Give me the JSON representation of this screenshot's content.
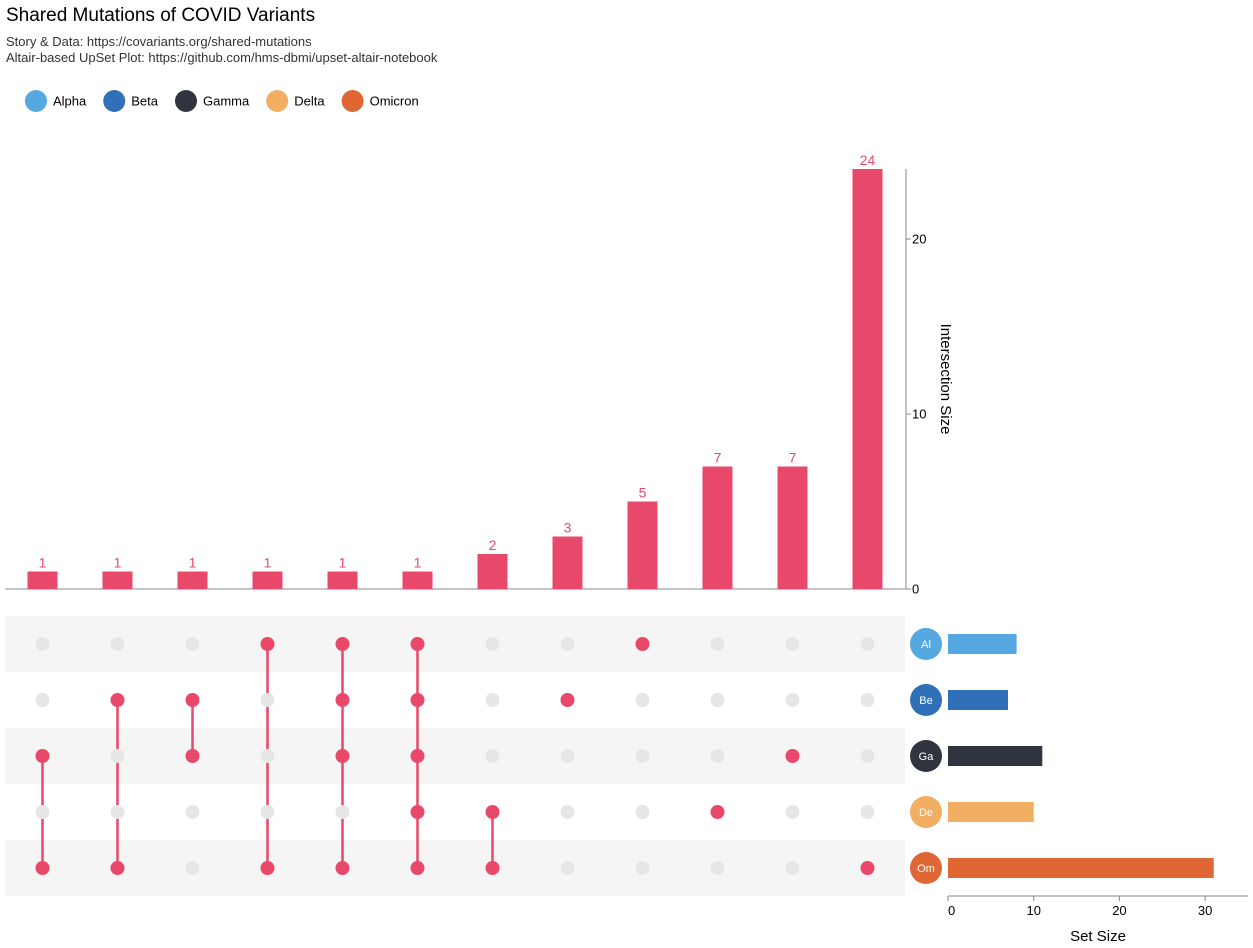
{
  "chart_data": {
    "type": "upset",
    "title": "Shared Mutations of COVID Variants",
    "subtitle": [
      "Story & Data: https://covariants.org/shared-mutations",
      "Altair-based UpSet Plot: https://github.com/hms-dbmi/upset-altair-notebook"
    ],
    "bar_color": "#e8496a",
    "inactive_color": "#e6e6e6",
    "intersection_values": [
      1,
      1,
      1,
      1,
      1,
      1,
      2,
      3,
      5,
      7,
      7,
      24
    ],
    "ylim": [
      0,
      24
    ],
    "yticks": [
      0,
      10,
      20
    ],
    "y_label": "Intersection Size",
    "sets": [
      {
        "name": "Alpha",
        "abbrev": "Al",
        "color": "#56a8e0",
        "size": 8
      },
      {
        "name": "Beta",
        "abbrev": "Be",
        "color": "#3070b8",
        "size": 7
      },
      {
        "name": "Gamma",
        "abbrev": "Ga",
        "color": "#30343f",
        "size": 11
      },
      {
        "name": "Delta",
        "abbrev": "De",
        "color": "#f2ae63",
        "size": 10
      },
      {
        "name": "Omicron",
        "abbrev": "Om",
        "color": "#e06633",
        "size": 31
      }
    ],
    "membership": [
      [
        0,
        0,
        0,
        1,
        1,
        1,
        0,
        0,
        1,
        0,
        0,
        0
      ],
      [
        0,
        1,
        1,
        0,
        1,
        1,
        0,
        1,
        0,
        0,
        0,
        0
      ],
      [
        1,
        0,
        1,
        0,
        1,
        1,
        0,
        0,
        0,
        0,
        1,
        0
      ],
      [
        0,
        0,
        0,
        0,
        0,
        1,
        1,
        0,
        0,
        1,
        0,
        0
      ],
      [
        1,
        1,
        0,
        1,
        1,
        1,
        1,
        0,
        0,
        0,
        0,
        1
      ]
    ],
    "xlim": [
      0,
      35
    ],
    "xticks": [
      0,
      10,
      20,
      30
    ],
    "x_label": "Set Size"
  }
}
